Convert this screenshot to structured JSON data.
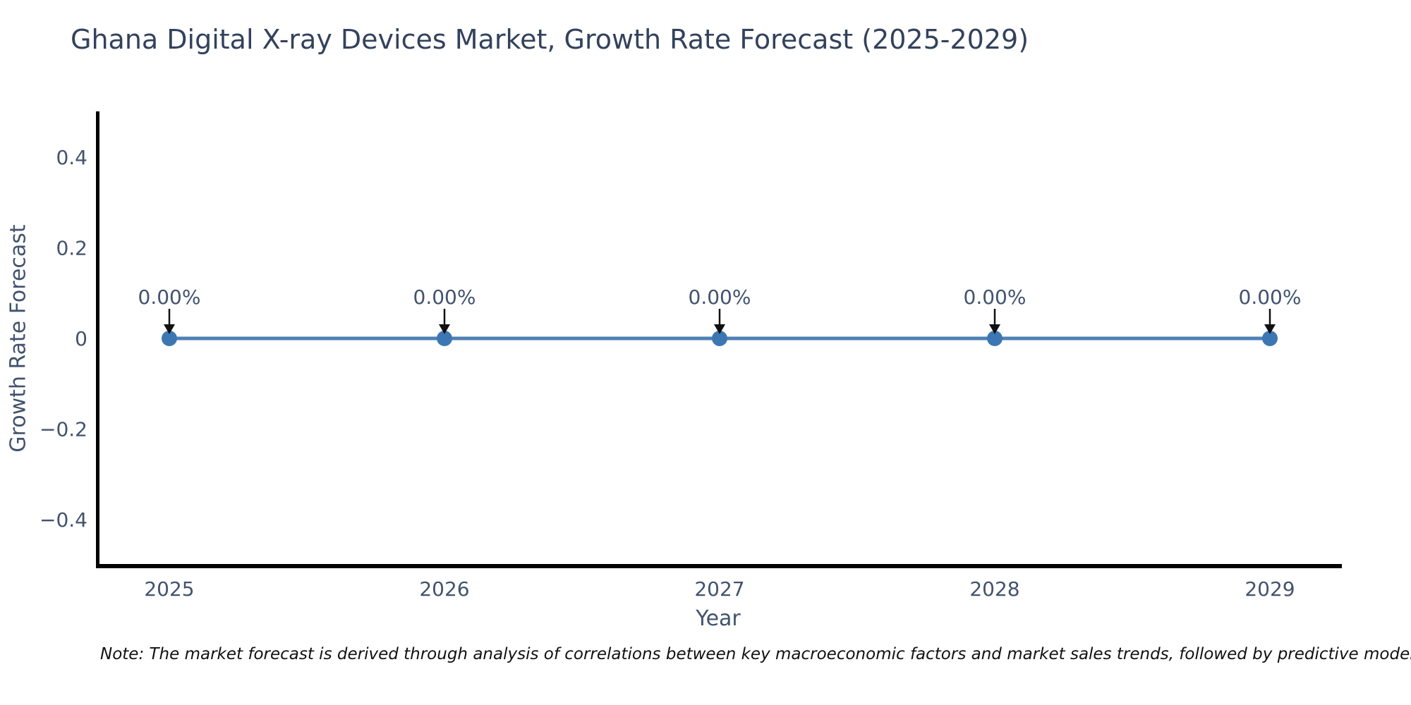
{
  "chart_data": {
    "type": "line",
    "title": "Ghana Digital X-ray Devices Market, Growth Rate Forecast (2025-2029)",
    "xlabel": "Year",
    "ylabel": "Growth Rate Forecast",
    "x": [
      2025,
      2026,
      2027,
      2028,
      2029
    ],
    "values": [
      0,
      0,
      0,
      0,
      0
    ],
    "point_labels": [
      "0.00%",
      "0.00%",
      "0.00%",
      "0.00%",
      "0.00%"
    ],
    "x_tick_labels": [
      "2025",
      "2026",
      "2027",
      "2028",
      "2029"
    ],
    "y_ticks": [
      0.4,
      0.2,
      0,
      -0.2,
      -0.4
    ],
    "y_tick_labels": [
      "0.4",
      "0.2",
      "0",
      "−0.2",
      "−0.4"
    ],
    "ylim": [
      -0.5,
      0.5
    ],
    "xlim": [
      2024.73,
      2029.26
    ],
    "grid": false,
    "legend": "none",
    "note": "Note: The market forecast is derived through analysis of correlations between key macroeconomic factors and market sales trends, followed by predictive modeling to project future sa",
    "colors": {
      "line": "#4e81b4",
      "marker": "#3d77b3",
      "arrow": "#111111",
      "axis_text": "#42536e",
      "title_text": "#33425c",
      "note_text": "#111111",
      "spine": "#000000"
    }
  }
}
